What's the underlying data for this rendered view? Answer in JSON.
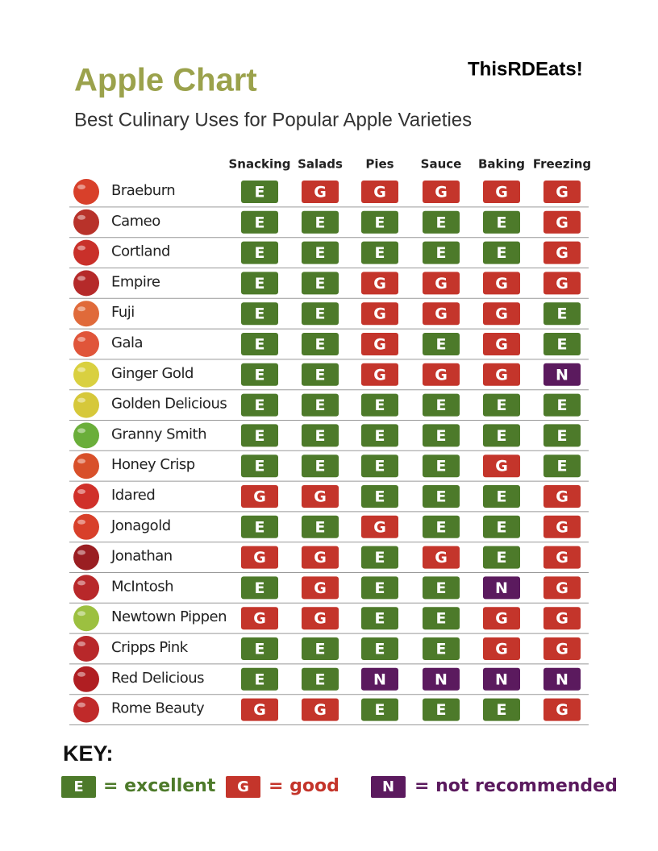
{
  "header": {
    "title": "Apple Chart",
    "subtitle": "Best Culinary Uses for Popular Apple Varieties",
    "brand": "ThisRDEats!"
  },
  "table": {
    "columns": [
      "Snacking",
      "Salads",
      "Pies",
      "Sauce",
      "Baking",
      "Freezing"
    ],
    "rows": [
      {
        "name": "Braeburn",
        "ratings": [
          "E",
          "G",
          "G",
          "G",
          "G",
          "G"
        ]
      },
      {
        "name": "Cameo",
        "ratings": [
          "E",
          "E",
          "E",
          "E",
          "E",
          "G"
        ]
      },
      {
        "name": "Cortland",
        "ratings": [
          "E",
          "E",
          "E",
          "E",
          "E",
          "G"
        ]
      },
      {
        "name": "Empire",
        "ratings": [
          "E",
          "E",
          "G",
          "G",
          "G",
          "G"
        ]
      },
      {
        "name": "Fuji",
        "ratings": [
          "E",
          "E",
          "G",
          "G",
          "G",
          "E"
        ]
      },
      {
        "name": "Gala",
        "ratings": [
          "E",
          "E",
          "G",
          "E",
          "G",
          "E"
        ]
      },
      {
        "name": "Ginger Gold",
        "ratings": [
          "E",
          "E",
          "G",
          "G",
          "G",
          "N"
        ]
      },
      {
        "name": "Golden Delicious",
        "ratings": [
          "E",
          "E",
          "E",
          "E",
          "E",
          "E"
        ]
      },
      {
        "name": "Granny Smith",
        "ratings": [
          "E",
          "E",
          "E",
          "E",
          "E",
          "E"
        ]
      },
      {
        "name": "Honey Crisp",
        "ratings": [
          "E",
          "E",
          "E",
          "E",
          "G",
          "E"
        ]
      },
      {
        "name": "Idared",
        "ratings": [
          "G",
          "G",
          "E",
          "E",
          "E",
          "G"
        ]
      },
      {
        "name": "Jonagold",
        "ratings": [
          "E",
          "E",
          "G",
          "E",
          "E",
          "G"
        ]
      },
      {
        "name": "Jonathan",
        "ratings": [
          "G",
          "G",
          "E",
          "G",
          "E",
          "G"
        ]
      },
      {
        "name": "McIntosh",
        "ratings": [
          "E",
          "G",
          "E",
          "E",
          "N",
          "G"
        ]
      },
      {
        "name": "Newtown Pippen",
        "ratings": [
          "G",
          "G",
          "E",
          "E",
          "G",
          "G"
        ]
      },
      {
        "name": "Cripps Pink",
        "ratings": [
          "E",
          "E",
          "E",
          "E",
          "G",
          "G"
        ]
      },
      {
        "name": "Red Delicious",
        "ratings": [
          "E",
          "E",
          "N",
          "N",
          "N",
          "N"
        ]
      },
      {
        "name": "Rome Beauty",
        "ratings": [
          "G",
          "G",
          "E",
          "E",
          "E",
          "G"
        ]
      }
    ]
  },
  "key": {
    "title": "KEY:",
    "entries": [
      {
        "code": "E",
        "label": "= excellent",
        "color": "#4d7a2a"
      },
      {
        "code": "G",
        "label": "= good",
        "color": "#c4352b"
      },
      {
        "code": "N",
        "label": "= not recommended",
        "color": "#5b1a5e"
      }
    ]
  }
}
